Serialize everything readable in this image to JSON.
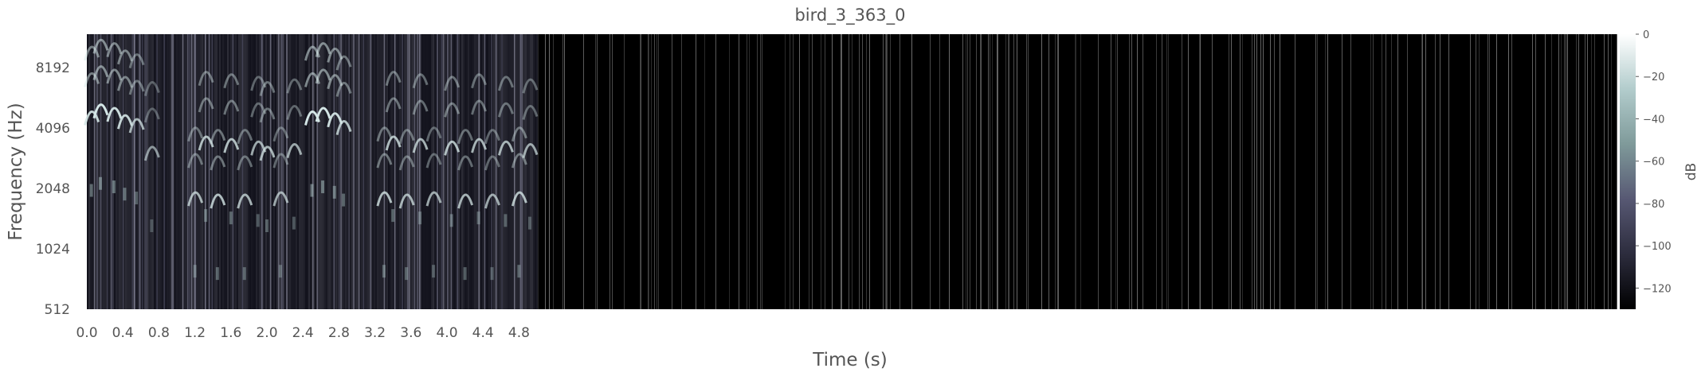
{
  "chart_data": {
    "type": "heatmap",
    "title": "bird_3_363_0",
    "xlabel": "Time (s)",
    "ylabel": "Frequency (Hz)",
    "x_ticks": [
      0.0,
      0.4,
      0.8,
      1.2,
      1.6,
      2.0,
      2.4,
      2.8,
      3.2,
      3.6,
      4.0,
      4.4,
      4.8
    ],
    "x_tick_labels": [
      "0.0",
      "0.4",
      "0.8",
      "1.2",
      "1.6",
      "2.0",
      "2.4",
      "2.8",
      "3.2",
      "3.6",
      "4.0",
      "4.4",
      "4.8"
    ],
    "xlim": [
      0.0,
      17.0
    ],
    "y_scale": "log2",
    "y_ticks": [
      512,
      1024,
      2048,
      4096,
      8192
    ],
    "y_tick_labels": [
      "512",
      "1024",
      "2048",
      "4096",
      "8192"
    ],
    "ylim": [
      512,
      12000
    ],
    "signal_end_s": 5.0,
    "calls": [
      {
        "t": 0.05,
        "f": 4800,
        "level": 0.9
      },
      {
        "t": 0.15,
        "f": 5200,
        "level": 1.0
      },
      {
        "t": 0.3,
        "f": 5000,
        "level": 0.95
      },
      {
        "t": 0.42,
        "f": 4600,
        "level": 0.9
      },
      {
        "t": 0.55,
        "f": 4400,
        "level": 0.75
      },
      {
        "t": 0.72,
        "f": 3200,
        "level": 0.6
      },
      {
        "t": 1.2,
        "f": 1900,
        "level": 0.75
      },
      {
        "t": 1.32,
        "f": 3600,
        "level": 0.8
      },
      {
        "t": 1.45,
        "f": 1850,
        "level": 0.8
      },
      {
        "t": 1.6,
        "f": 3500,
        "level": 0.8
      },
      {
        "t": 1.75,
        "f": 1850,
        "level": 0.75
      },
      {
        "t": 1.9,
        "f": 3400,
        "level": 0.7
      },
      {
        "t": 2.0,
        "f": 3200,
        "level": 0.75
      },
      {
        "t": 2.15,
        "f": 1900,
        "level": 0.7
      },
      {
        "t": 2.3,
        "f": 3300,
        "level": 0.7
      },
      {
        "t": 2.5,
        "f": 4800,
        "level": 1.0
      },
      {
        "t": 2.62,
        "f": 5000,
        "level": 1.0
      },
      {
        "t": 2.75,
        "f": 4700,
        "level": 0.95
      },
      {
        "t": 2.85,
        "f": 4300,
        "level": 0.8
      },
      {
        "t": 3.3,
        "f": 1900,
        "level": 0.8
      },
      {
        "t": 3.4,
        "f": 3600,
        "level": 0.8
      },
      {
        "t": 3.55,
        "f": 1850,
        "level": 0.75
      },
      {
        "t": 3.7,
        "f": 3500,
        "level": 0.75
      },
      {
        "t": 3.85,
        "f": 1900,
        "level": 0.7
      },
      {
        "t": 4.05,
        "f": 3400,
        "level": 0.8
      },
      {
        "t": 4.2,
        "f": 1850,
        "level": 0.75
      },
      {
        "t": 4.35,
        "f": 3500,
        "level": 0.75
      },
      {
        "t": 4.5,
        "f": 1850,
        "level": 0.7
      },
      {
        "t": 4.65,
        "f": 3400,
        "level": 0.75
      },
      {
        "t": 4.8,
        "f": 1900,
        "level": 0.8
      },
      {
        "t": 4.92,
        "f": 3300,
        "level": 0.7
      }
    ],
    "colorbar": {
      "label": "dB",
      "range": [
        -130,
        0
      ],
      "ticks": [
        0,
        -20,
        -40,
        -60,
        -80,
        -100,
        -120
      ],
      "tick_labels": [
        "0",
        "−20",
        "−40",
        "−60",
        "−80",
        "−100",
        "−120"
      ],
      "colormap": "bone",
      "stops": [
        "#000000",
        "#2c2c3d",
        "#575873",
        "#7f9a9a",
        "#b2cccc",
        "#ffffff"
      ]
    },
    "grid": false
  }
}
